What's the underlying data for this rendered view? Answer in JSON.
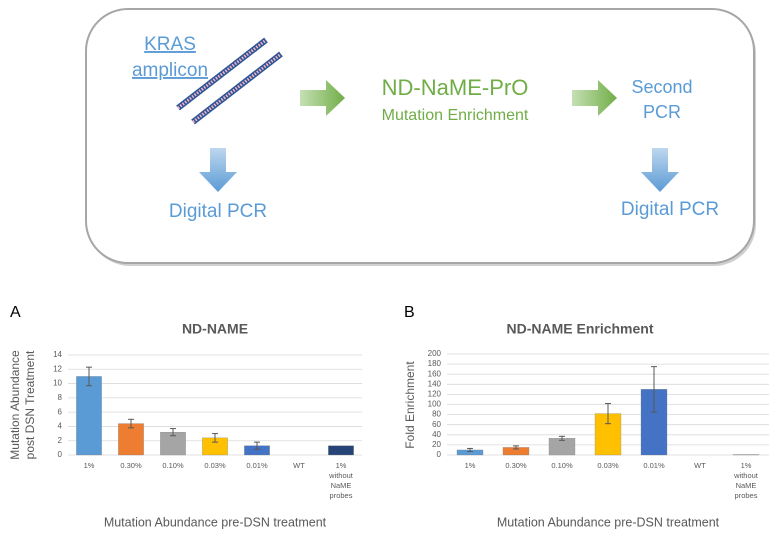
{
  "diagram": {
    "input_label": [
      "KRAS",
      "amplicon"
    ],
    "method": "ND-NaME-PrO",
    "method_subtitle": "Mutation Enrichment",
    "second_step": [
      "Second",
      "PCR"
    ],
    "readout_left": "Digital PCR",
    "readout_right": "Digital PCR"
  },
  "chart_data": [
    {
      "type": "bar",
      "panel": "A",
      "title": "ND-NAME",
      "ylabel": [
        "Mutation Abundance",
        "post DSN Treatment"
      ],
      "xlabel": "Mutation Abundance pre-DSN treatment",
      "categories": [
        "1%",
        "0.30%",
        "0.10%",
        "0.03%",
        "0.01%",
        "WT",
        "1% without NaME probes"
      ],
      "values": [
        11,
        4.4,
        3.2,
        2.4,
        1.3,
        null,
        1.3
      ],
      "errors": [
        1.3,
        0.6,
        0.5,
        0.6,
        0.5,
        null,
        null
      ],
      "colors": [
        "#5b9bd5",
        "#ed7d31",
        "#a5a5a5",
        "#ffc000",
        "#4472c4",
        null,
        "#264478"
      ],
      "ylim": [
        0,
        14
      ],
      "yticks": [
        0,
        2,
        4,
        6,
        8,
        10,
        12,
        14
      ],
      "grid": true
    },
    {
      "type": "bar",
      "panel": "B",
      "title": "ND-NAME Enrichment",
      "ylabel": [
        "Fold Enrichment"
      ],
      "xlabel": "Mutation Abundance pre-DSN treatment",
      "categories": [
        "1%",
        "0.30%",
        "0.10%",
        "0.03%",
        "0.01%",
        "WT",
        "1% without NaME probes"
      ],
      "values": [
        10,
        15,
        33,
        82,
        130,
        null,
        1
      ],
      "errors": [
        3,
        3,
        4,
        20,
        45,
        null,
        null
      ],
      "colors": [
        "#5b9bd5",
        "#ed7d31",
        "#a5a5a5",
        "#ffc000",
        "#4472c4",
        null,
        "#a5a5a5"
      ],
      "ylim": [
        0,
        200
      ],
      "yticks": [
        0,
        20,
        40,
        60,
        80,
        100,
        120,
        140,
        160,
        180,
        200
      ],
      "grid": true
    }
  ]
}
